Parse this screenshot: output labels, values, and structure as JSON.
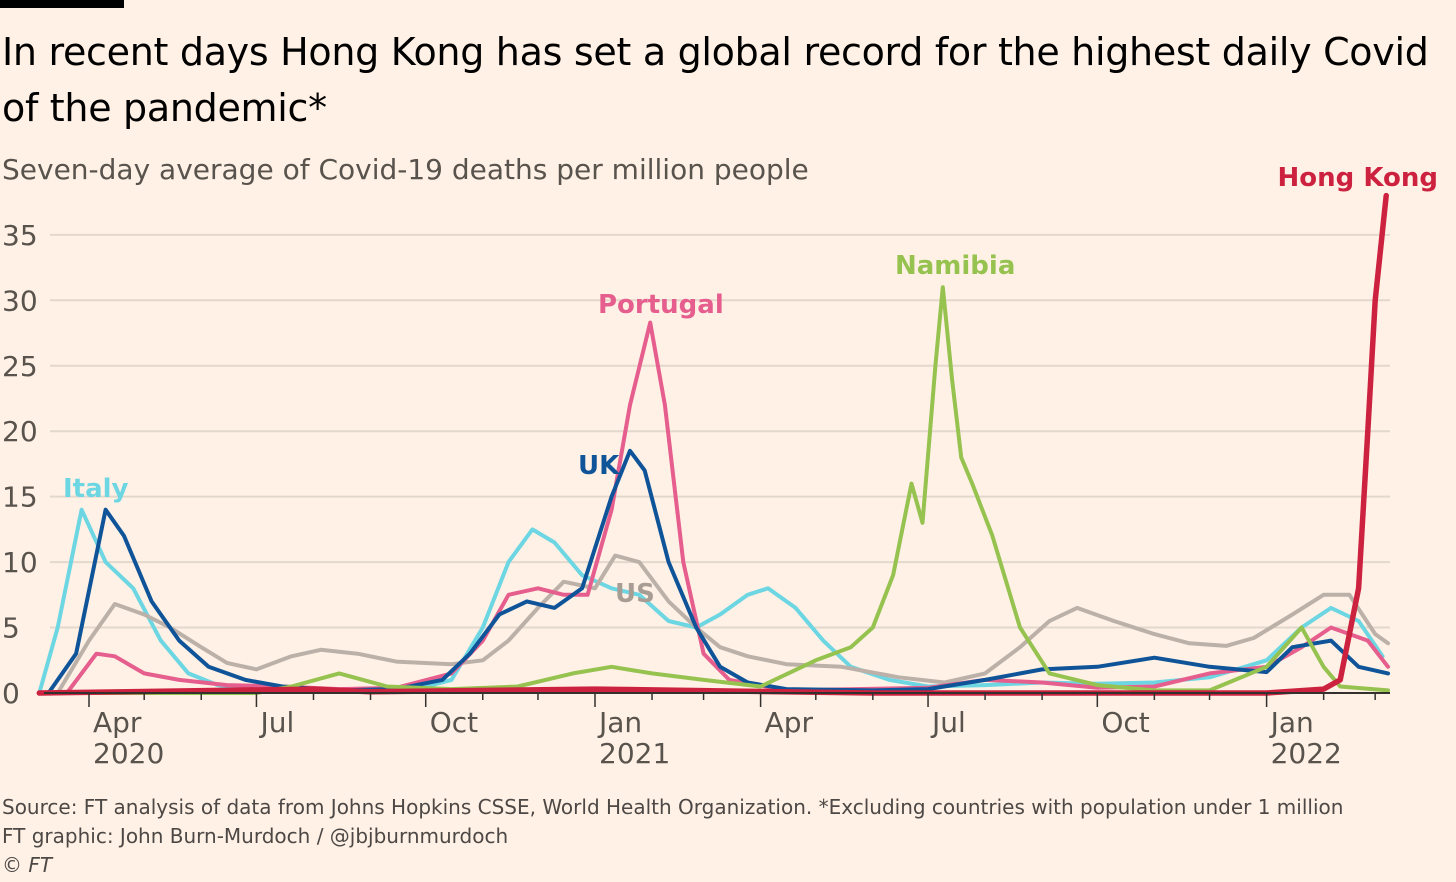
{
  "title_line1": "In recent days Hong Kong has set a global record for the highest daily Covid",
  "title_line2": "of the pandemic*",
  "subtitle": "Seven-day average of Covid-19 deaths per million people",
  "source": "Source: FT analysis of data from Johns Hopkins CSSE, World Health Organization. *Excluding countries with population under 1 million",
  "credit": "FT graphic: John Burn-Murdoch / @jbjburnmurdoch",
  "copyright": "© FT",
  "chart_data": {
    "type": "line",
    "title": "In recent days Hong Kong has set a global record for the highest daily Covid of the pandemic*",
    "ylabel": "Seven-day average of Covid-19 deaths per million people",
    "ylim": [
      0,
      35
    ],
    "yticks": [
      "0",
      "5",
      "10",
      "15",
      "20",
      "25",
      "30",
      "35"
    ],
    "xticks": [
      {
        "date": "2020-04-01",
        "label": "Apr",
        "year": "2020"
      },
      {
        "date": "2020-07-01",
        "label": "Jul",
        "year": ""
      },
      {
        "date": "2020-10-01",
        "label": "Oct",
        "year": ""
      },
      {
        "date": "2021-01-01",
        "label": "Jan",
        "year": "2021"
      },
      {
        "date": "2021-04-01",
        "label": "Apr",
        "year": ""
      },
      {
        "date": "2021-07-01",
        "label": "Jul",
        "year": ""
      },
      {
        "date": "2021-10-01",
        "label": "Oct",
        "year": ""
      },
      {
        "date": "2022-01-01",
        "label": "Jan",
        "year": "2022"
      }
    ],
    "grid": true,
    "series": [
      {
        "name": "Italy",
        "color": "#6dd6e3",
        "points": [
          [
            "2020-03-05",
            0
          ],
          [
            "2020-03-15",
            5
          ],
          [
            "2020-03-28",
            14
          ],
          [
            "2020-04-10",
            10
          ],
          [
            "2020-04-25",
            8
          ],
          [
            "2020-05-10",
            4
          ],
          [
            "2020-05-25",
            1.5
          ],
          [
            "2020-06-10",
            0.6
          ],
          [
            "2020-07-01",
            0.3
          ],
          [
            "2020-08-01",
            0.2
          ],
          [
            "2020-09-01",
            0.2
          ],
          [
            "2020-10-01",
            0.5
          ],
          [
            "2020-10-15",
            1
          ],
          [
            "2020-11-01",
            5
          ],
          [
            "2020-11-15",
            10
          ],
          [
            "2020-11-28",
            12.5
          ],
          [
            "2020-12-10",
            11.5
          ],
          [
            "2020-12-25",
            9
          ],
          [
            "2021-01-10",
            8
          ],
          [
            "2021-01-25",
            7.5
          ],
          [
            "2021-02-10",
            5.5
          ],
          [
            "2021-02-25",
            5
          ],
          [
            "2021-03-10",
            6
          ],
          [
            "2021-03-25",
            7.5
          ],
          [
            "2021-04-05",
            8
          ],
          [
            "2021-04-20",
            6.5
          ],
          [
            "2021-05-05",
            4
          ],
          [
            "2021-05-20",
            2
          ],
          [
            "2021-06-10",
            1
          ],
          [
            "2021-07-01",
            0.5
          ],
          [
            "2021-08-01",
            0.6
          ],
          [
            "2021-09-01",
            0.8
          ],
          [
            "2021-10-01",
            0.7
          ],
          [
            "2021-11-01",
            0.8
          ],
          [
            "2021-12-01",
            1.2
          ],
          [
            "2022-01-01",
            2.5
          ],
          [
            "2022-01-20",
            5
          ],
          [
            "2022-02-05",
            6.5
          ],
          [
            "2022-02-20",
            5.5
          ],
          [
            "2022-03-05",
            2.8
          ]
        ]
      },
      {
        "name": "US",
        "color": "#bcb1a8",
        "points": [
          [
            "2020-03-15",
            0
          ],
          [
            "2020-04-01",
            4
          ],
          [
            "2020-04-15",
            6.8
          ],
          [
            "2020-05-01",
            6
          ],
          [
            "2020-05-15",
            5
          ],
          [
            "2020-06-01",
            3.5
          ],
          [
            "2020-06-15",
            2.3
          ],
          [
            "2020-07-01",
            1.8
          ],
          [
            "2020-07-20",
            2.8
          ],
          [
            "2020-08-05",
            3.3
          ],
          [
            "2020-08-25",
            3
          ],
          [
            "2020-09-15",
            2.4
          ],
          [
            "2020-10-15",
            2.2
          ],
          [
            "2020-11-01",
            2.5
          ],
          [
            "2020-11-15",
            4
          ],
          [
            "2020-12-01",
            6.5
          ],
          [
            "2020-12-15",
            8.5
          ],
          [
            "2021-01-01",
            8
          ],
          [
            "2021-01-12",
            10.5
          ],
          [
            "2021-01-25",
            10
          ],
          [
            "2021-02-10",
            7
          ],
          [
            "2021-02-25",
            5
          ],
          [
            "2021-03-10",
            3.5
          ],
          [
            "2021-03-25",
            2.8
          ],
          [
            "2021-04-15",
            2.2
          ],
          [
            "2021-05-15",
            2
          ],
          [
            "2021-06-15",
            1.2
          ],
          [
            "2021-07-10",
            0.8
          ],
          [
            "2021-08-01",
            1.5
          ],
          [
            "2021-08-20",
            3.5
          ],
          [
            "2021-09-05",
            5.5
          ],
          [
            "2021-09-20",
            6.5
          ],
          [
            "2021-10-10",
            5.5
          ],
          [
            "2021-11-01",
            4.5
          ],
          [
            "2021-11-20",
            3.8
          ],
          [
            "2021-12-10",
            3.6
          ],
          [
            "2021-12-25",
            4.2
          ],
          [
            "2022-01-15",
            6
          ],
          [
            "2022-02-01",
            7.5
          ],
          [
            "2022-02-15",
            7.5
          ],
          [
            "2022-03-01",
            4.5
          ],
          [
            "2022-03-08",
            3.8
          ]
        ]
      },
      {
        "name": "Portugal",
        "color": "#e55e8d",
        "points": [
          [
            "2020-03-20",
            0
          ],
          [
            "2020-04-05",
            3
          ],
          [
            "2020-04-15",
            2.8
          ],
          [
            "2020-05-01",
            1.5
          ],
          [
            "2020-05-20",
            1
          ],
          [
            "2020-06-15",
            0.6
          ],
          [
            "2020-07-15",
            0.5
          ],
          [
            "2020-08-15",
            0.3
          ],
          [
            "2020-09-15",
            0.4
          ],
          [
            "2020-10-15",
            1.5
          ],
          [
            "2020-11-01",
            4
          ],
          [
            "2020-11-15",
            7.5
          ],
          [
            "2020-12-01",
            8
          ],
          [
            "2020-12-15",
            7.5
          ],
          [
            "2020-12-28",
            7.5
          ],
          [
            "2021-01-10",
            14
          ],
          [
            "2021-01-20",
            22
          ],
          [
            "2021-01-31",
            28.3
          ],
          [
            "2021-02-08",
            22
          ],
          [
            "2021-02-18",
            10
          ],
          [
            "2021-03-01",
            3
          ],
          [
            "2021-03-15",
            1
          ],
          [
            "2021-04-15",
            0.2
          ],
          [
            "2021-07-01",
            0.4
          ],
          [
            "2021-08-01",
            1
          ],
          [
            "2021-09-01",
            0.8
          ],
          [
            "2021-10-01",
            0.4
          ],
          [
            "2021-11-01",
            0.5
          ],
          [
            "2021-12-01",
            1.5
          ],
          [
            "2022-01-01",
            2
          ],
          [
            "2022-01-20",
            3.5
          ],
          [
            "2022-02-05",
            5
          ],
          [
            "2022-02-25",
            4
          ],
          [
            "2022-03-08",
            2
          ]
        ]
      },
      {
        "name": "UK",
        "color": "#0f5499",
        "points": [
          [
            "2020-03-10",
            0
          ],
          [
            "2020-03-25",
            3
          ],
          [
            "2020-04-10",
            14
          ],
          [
            "2020-04-20",
            12
          ],
          [
            "2020-05-05",
            7
          ],
          [
            "2020-05-20",
            4
          ],
          [
            "2020-06-05",
            2
          ],
          [
            "2020-06-25",
            1
          ],
          [
            "2020-07-15",
            0.5
          ],
          [
            "2020-08-15",
            0.2
          ],
          [
            "2020-09-15",
            0.3
          ],
          [
            "2020-10-10",
            1
          ],
          [
            "2020-10-25",
            3
          ],
          [
            "2020-11-10",
            6
          ],
          [
            "2020-11-25",
            7
          ],
          [
            "2020-12-10",
            6.5
          ],
          [
            "2020-12-25",
            8
          ],
          [
            "2021-01-10",
            15
          ],
          [
            "2021-01-20",
            18.5
          ],
          [
            "2021-01-28",
            17
          ],
          [
            "2021-02-10",
            10
          ],
          [
            "2021-02-25",
            5
          ],
          [
            "2021-03-10",
            2
          ],
          [
            "2021-03-25",
            0.8
          ],
          [
            "2021-04-15",
            0.3
          ],
          [
            "2021-06-01",
            0.2
          ],
          [
            "2021-07-01",
            0.3
          ],
          [
            "2021-08-01",
            1
          ],
          [
            "2021-09-01",
            1.8
          ],
          [
            "2021-10-01",
            2
          ],
          [
            "2021-11-01",
            2.7
          ],
          [
            "2021-12-01",
            2
          ],
          [
            "2022-01-01",
            1.6
          ],
          [
            "2022-01-15",
            3.5
          ],
          [
            "2022-02-05",
            4
          ],
          [
            "2022-02-20",
            2
          ],
          [
            "2022-03-08",
            1.5
          ]
        ]
      },
      {
        "name": "Namibia",
        "color": "#96c250",
        "points": [
          [
            "2020-03-05",
            0
          ],
          [
            "2020-07-01",
            0
          ],
          [
            "2020-07-20",
            0.5
          ],
          [
            "2020-08-15",
            1.5
          ],
          [
            "2020-09-10",
            0.5
          ],
          [
            "2020-10-15",
            0.3
          ],
          [
            "2020-11-20",
            0.5
          ],
          [
            "2020-12-20",
            1.5
          ],
          [
            "2021-01-10",
            2
          ],
          [
            "2021-02-01",
            1.5
          ],
          [
            "2021-03-01",
            1
          ],
          [
            "2021-04-01",
            0.5
          ],
          [
            "2021-05-01",
            2.5
          ],
          [
            "2021-05-20",
            3.5
          ],
          [
            "2021-06-01",
            5
          ],
          [
            "2021-06-12",
            9
          ],
          [
            "2021-06-22",
            16
          ],
          [
            "2021-06-28",
            13
          ],
          [
            "2021-07-05",
            25
          ],
          [
            "2021-07-09",
            31
          ],
          [
            "2021-07-14",
            24
          ],
          [
            "2021-07-19",
            18
          ],
          [
            "2021-07-25",
            16
          ],
          [
            "2021-08-05",
            12
          ],
          [
            "2021-08-20",
            5
          ],
          [
            "2021-09-05",
            1.5
          ],
          [
            "2021-10-01",
            0.6
          ],
          [
            "2021-11-01",
            0.2
          ],
          [
            "2021-12-01",
            0.2
          ],
          [
            "2022-01-01",
            2
          ],
          [
            "2022-01-20",
            5
          ],
          [
            "2022-02-01",
            2
          ],
          [
            "2022-02-10",
            0.5
          ],
          [
            "2022-03-08",
            0.2
          ]
        ]
      },
      {
        "name": "Hong Kong",
        "color": "#cc2240",
        "points": [
          [
            "2020-03-05",
            0
          ],
          [
            "2020-08-01",
            0.3
          ],
          [
            "2020-09-01",
            0.1
          ],
          [
            "2021-01-01",
            0.3
          ],
          [
            "2021-06-01",
            0
          ],
          [
            "2022-01-01",
            0
          ],
          [
            "2022-02-01",
            0.3
          ],
          [
            "2022-02-10",
            1
          ],
          [
            "2022-02-20",
            8
          ],
          [
            "2022-02-25",
            20
          ],
          [
            "2022-03-01",
            30
          ],
          [
            "2022-03-07",
            38
          ]
        ]
      }
    ]
  }
}
